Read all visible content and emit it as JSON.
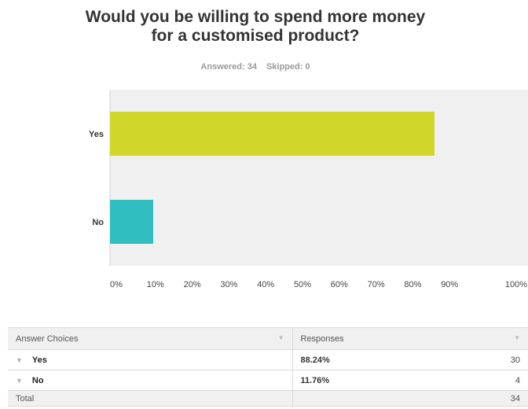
{
  "chart_data": {
    "type": "bar",
    "orientation": "horizontal",
    "title_lines": [
      "Would you be willing to spend more money",
      "for a customised product?"
    ],
    "answered_label": "Answered: 34",
    "skipped_label": "Skipped: 0",
    "categories": [
      "Yes",
      "No"
    ],
    "values": [
      88.24,
      11.76
    ],
    "colors": [
      "#d0d62a",
      "#31bec1"
    ],
    "xlim": [
      0,
      100
    ],
    "x_ticks": [
      "0%",
      "10%",
      "20%",
      "30%",
      "40%",
      "50%",
      "60%",
      "70%",
      "80%",
      "90%",
      "100%"
    ],
    "grid": false,
    "plot_background": "#f0f0f0"
  },
  "table": {
    "headers": [
      "Answer Choices",
      "Responses"
    ],
    "rows": [
      {
        "choice": "Yes",
        "percent": "88.24%",
        "count": "30"
      },
      {
        "choice": "No",
        "percent": "11.76%",
        "count": "4"
      }
    ],
    "total_label": "Total",
    "total_count": "34"
  }
}
